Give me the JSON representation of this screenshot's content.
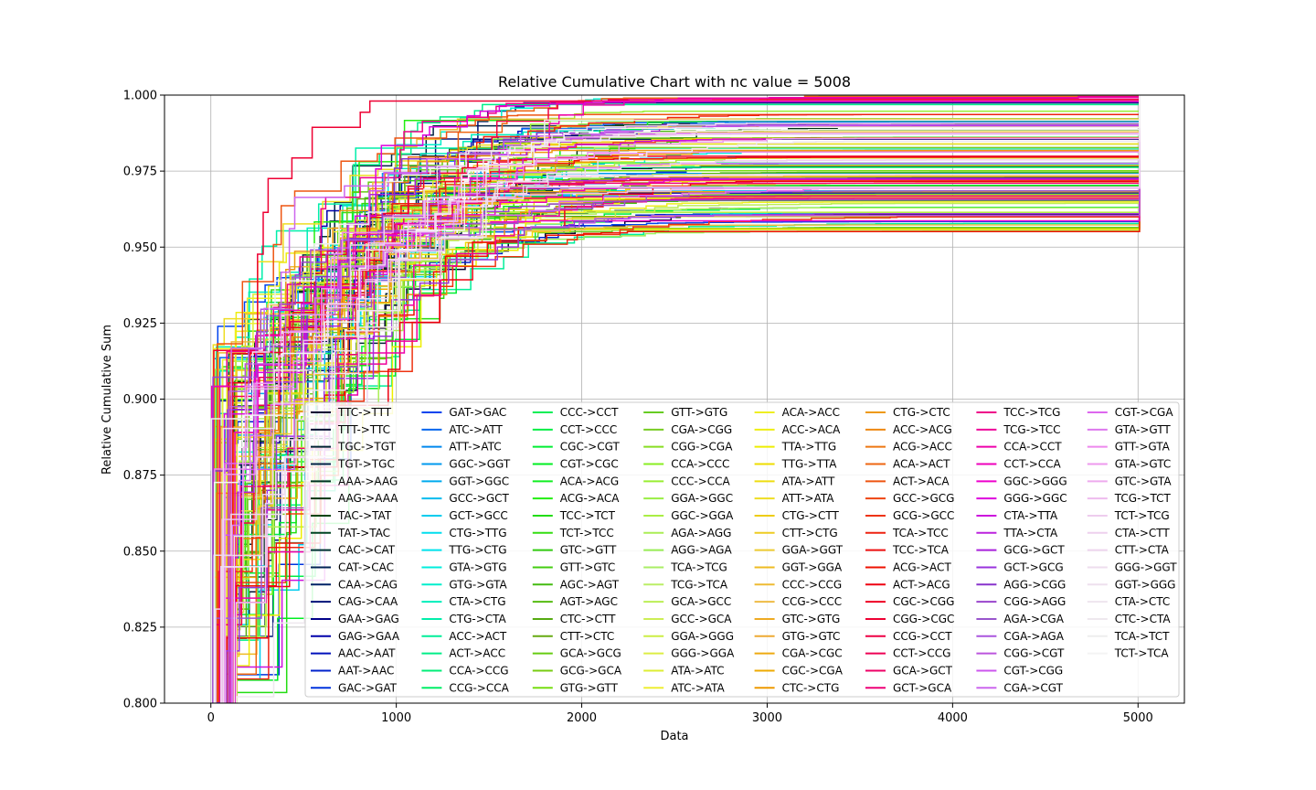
{
  "chart_data": {
    "type": "line",
    "title": "Relative Cumulative Chart with nc value = 5008",
    "xlabel": "Data",
    "ylabel": "Relative Cumulative Sum",
    "xlim": [
      -250,
      5250
    ],
    "ylim": [
      0.8,
      1.0
    ],
    "xticks": [
      "0",
      "1000",
      "2000",
      "3000",
      "4000",
      "5000"
    ],
    "yticks": [
      "0.800",
      "0.825",
      "0.850",
      "0.875",
      "0.900",
      "0.925",
      "0.950",
      "0.975",
      "1.000"
    ],
    "grid": true,
    "legend_position": "lower-right",
    "legend_columns": 8,
    "x_end": 5008,
    "series": [
      {
        "name": "TTC->TTT",
        "color": "#000033"
      },
      {
        "name": "TTT->TTC",
        "color": "#001133"
      },
      {
        "name": "TGC->TGT",
        "color": "#002233"
      },
      {
        "name": "TGT->TGC",
        "color": "#002244"
      },
      {
        "name": "AAA->AAG",
        "color": "#003322"
      },
      {
        "name": "AAG->AAA",
        "color": "#003311"
      },
      {
        "name": "TAC->TAT",
        "color": "#004411"
      },
      {
        "name": "TAT->TAC",
        "color": "#004422"
      },
      {
        "name": "CAC->CAT",
        "color": "#003333"
      },
      {
        "name": "CAT->CAC",
        "color": "#002255"
      },
      {
        "name": "CAA->CAG",
        "color": "#002266"
      },
      {
        "name": "CAG->CAA",
        "color": "#001177"
      },
      {
        "name": "GAA->GAG",
        "color": "#000088"
      },
      {
        "name": "GAG->GAA",
        "color": "#0000aa"
      },
      {
        "name": "AAC->AAT",
        "color": "#0011bb"
      },
      {
        "name": "AAT->AAC",
        "color": "#0022cc"
      },
      {
        "name": "GAC->GAT",
        "color": "#0033dd"
      },
      {
        "name": "GAT->GAC",
        "color": "#0044ee"
      },
      {
        "name": "ATC->ATT",
        "color": "#0066ee"
      },
      {
        "name": "ATT->ATC",
        "color": "#0088ee"
      },
      {
        "name": "GGC->GGT",
        "color": "#0099ee"
      },
      {
        "name": "GGT->GGC",
        "color": "#00aaee"
      },
      {
        "name": "GCC->GCT",
        "color": "#00bbee"
      },
      {
        "name": "GCT->GCC",
        "color": "#00ccee"
      },
      {
        "name": "CTG->TTG",
        "color": "#00ddee"
      },
      {
        "name": "TTG->CTG",
        "color": "#00e5ee"
      },
      {
        "name": "GTA->GTG",
        "color": "#00eedd"
      },
      {
        "name": "GTG->GTA",
        "color": "#00eecc"
      },
      {
        "name": "CTA->CTG",
        "color": "#00eebb"
      },
      {
        "name": "CTG->CTA",
        "color": "#00eeaa"
      },
      {
        "name": "ACC->ACT",
        "color": "#00ee99"
      },
      {
        "name": "ACT->ACC",
        "color": "#00ee88"
      },
      {
        "name": "CCA->CCG",
        "color": "#00ee77"
      },
      {
        "name": "CCG->CCA",
        "color": "#00ee66"
      },
      {
        "name": "CCC->CCT",
        "color": "#00ee55"
      },
      {
        "name": "CCT->CCC",
        "color": "#00ee44"
      },
      {
        "name": "CGC->CGT",
        "color": "#00ee33"
      },
      {
        "name": "CGT->CGC",
        "color": "#00ee22"
      },
      {
        "name": "ACA->ACG",
        "color": "#11ee22"
      },
      {
        "name": "ACG->ACA",
        "color": "#22ee11"
      },
      {
        "name": "TCC->TCT",
        "color": "#22dd11"
      },
      {
        "name": "TCT->TCC",
        "color": "#33dd11"
      },
      {
        "name": "GTC->GTT",
        "color": "#33cc11"
      },
      {
        "name": "GTT->GTC",
        "color": "#44cc11"
      },
      {
        "name": "AGC->AGT",
        "color": "#44bb11"
      },
      {
        "name": "AGT->AGC",
        "color": "#55bb11"
      },
      {
        "name": "CTC->CTT",
        "color": "#55aa11"
      },
      {
        "name": "CTT->CTC",
        "color": "#66aa11"
      },
      {
        "name": "GCA->GCG",
        "color": "#66cc11"
      },
      {
        "name": "GCG->GCA",
        "color": "#77cc11"
      },
      {
        "name": "GTG->GTT",
        "color": "#77dd11"
      },
      {
        "name": "GTT->GTG",
        "color": "#66cc22"
      },
      {
        "name": "CGA->CGG",
        "color": "#77cc22"
      },
      {
        "name": "CGG->CGA",
        "color": "#88dd22"
      },
      {
        "name": "CCA->CCC",
        "color": "#88ee22"
      },
      {
        "name": "CCC->CCA",
        "color": "#99ee33"
      },
      {
        "name": "GGA->GGC",
        "color": "#99ee44"
      },
      {
        "name": "GGC->GGA",
        "color": "#aaee44"
      },
      {
        "name": "AGA->AGG",
        "color": "#aaee55"
      },
      {
        "name": "AGG->AGA",
        "color": "#99ee55"
      },
      {
        "name": "TCA->TCG",
        "color": "#aaee66"
      },
      {
        "name": "TCG->TCA",
        "color": "#bbee66"
      },
      {
        "name": "GCA->GCC",
        "color": "#bbee55"
      },
      {
        "name": "GCC->GCA",
        "color": "#ccee55"
      },
      {
        "name": "GGA->GGG",
        "color": "#ccee44"
      },
      {
        "name": "GGG->GGA",
        "color": "#ddee44"
      },
      {
        "name": "ATA->ATC",
        "color": "#ddee33"
      },
      {
        "name": "ATC->ATA",
        "color": "#eeee33"
      },
      {
        "name": "ACA->ACC",
        "color": "#eeee22"
      },
      {
        "name": "ACC->ACA",
        "color": "#eeee11"
      },
      {
        "name": "TTA->TTG",
        "color": "#eeee00"
      },
      {
        "name": "TTG->TTA",
        "color": "#eedd00"
      },
      {
        "name": "ATA->ATT",
        "color": "#eedd11"
      },
      {
        "name": "ATT->ATA",
        "color": "#eedd22"
      },
      {
        "name": "CTG->CTT",
        "color": "#eecc11"
      },
      {
        "name": "CTT->CTG",
        "color": "#eecc22"
      },
      {
        "name": "GGA->GGT",
        "color": "#eecc33"
      },
      {
        "name": "GGT->GGA",
        "color": "#eebb22"
      },
      {
        "name": "CCC->CCG",
        "color": "#eebb33"
      },
      {
        "name": "CCG->CCC",
        "color": "#eebb44"
      },
      {
        "name": "GTC->GTG",
        "color": "#eeaa22"
      },
      {
        "name": "GTG->GTC",
        "color": "#eeaa33"
      },
      {
        "name": "CGA->CGC",
        "color": "#eeaa11"
      },
      {
        "name": "CGC->CGA",
        "color": "#eeaa00"
      },
      {
        "name": "CTC->CTG",
        "color": "#ee9900"
      },
      {
        "name": "CTG->CTC",
        "color": "#ee9911"
      },
      {
        "name": "ACC->ACG",
        "color": "#ee8811"
      },
      {
        "name": "ACG->ACC",
        "color": "#ee7711"
      },
      {
        "name": "ACA->ACT",
        "color": "#ee6611"
      },
      {
        "name": "ACT->ACA",
        "color": "#ee5511"
      },
      {
        "name": "GCC->GCG",
        "color": "#ee4411"
      },
      {
        "name": "GCG->GCC",
        "color": "#ee3311"
      },
      {
        "name": "TCA->TCC",
        "color": "#ee2211"
      },
      {
        "name": "TCC->TCA",
        "color": "#ee1111"
      },
      {
        "name": "ACG->ACT",
        "color": "#ee1100"
      },
      {
        "name": "ACT->ACG",
        "color": "#ee0011"
      },
      {
        "name": "CGC->CGG",
        "color": "#ee0022"
      },
      {
        "name": "CGG->CGC",
        "color": "#ee0033"
      },
      {
        "name": "CCG->CCT",
        "color": "#ee0044"
      },
      {
        "name": "CCT->CCG",
        "color": "#ee0055"
      },
      {
        "name": "GCA->GCT",
        "color": "#ee0066"
      },
      {
        "name": "GCT->GCA",
        "color": "#ee0077"
      },
      {
        "name": "TCC->TCG",
        "color": "#ee0088"
      },
      {
        "name": "TCG->TCC",
        "color": "#ee0099"
      },
      {
        "name": "CCA->CCT",
        "color": "#ee00aa"
      },
      {
        "name": "CCT->CCA",
        "color": "#ee00bb"
      },
      {
        "name": "GGC->GGG",
        "color": "#ee00cc"
      },
      {
        "name": "GGG->GGC",
        "color": "#dd00dd"
      },
      {
        "name": "CTA->TTA",
        "color": "#cc11dd"
      },
      {
        "name": "TTA->CTA",
        "color": "#bb22dd"
      },
      {
        "name": "GCG->GCT",
        "color": "#aa22dd"
      },
      {
        "name": "GCT->GCG",
        "color": "#9933dd"
      },
      {
        "name": "AGG->CGG",
        "color": "#8833cc"
      },
      {
        "name": "CGG->AGG",
        "color": "#9944cc"
      },
      {
        "name": "AGA->CGA",
        "color": "#9955cc"
      },
      {
        "name": "CGA->AGA",
        "color": "#aa55dd"
      },
      {
        "name": "CGG->CGT",
        "color": "#bb55dd"
      },
      {
        "name": "CGT->CGG",
        "color": "#cc55ee"
      },
      {
        "name": "CGA->CGT",
        "color": "#cc66ee"
      },
      {
        "name": "CGT->CGA",
        "color": "#dd66ee"
      },
      {
        "name": "GTA->GTT",
        "color": "#dd77ee"
      },
      {
        "name": "GTT->GTA",
        "color": "#ee88ee"
      },
      {
        "name": "GTA->GTC",
        "color": "#ee99ee"
      },
      {
        "name": "GTC->GTA",
        "color": "#eeaaee"
      },
      {
        "name": "TCG->TCT",
        "color": "#eebbee"
      },
      {
        "name": "TCT->TCG",
        "color": "#eeccee"
      },
      {
        "name": "CTA->CTT",
        "color": "#eed0ee"
      },
      {
        "name": "CTT->CTA",
        "color": "#eed5ee"
      },
      {
        "name": "GGG->GGT",
        "color": "#eeddee"
      },
      {
        "name": "GGT->GGG",
        "color": "#eee0ee"
      },
      {
        "name": "CTA->CTC",
        "color": "#eee5ee"
      },
      {
        "name": "CTC->CTA",
        "color": "#eee8ee"
      },
      {
        "name": "TCA->TCT",
        "color": "#eeeeee"
      },
      {
        "name": "TCT->TCA",
        "color": "#f4f4f4"
      }
    ]
  }
}
